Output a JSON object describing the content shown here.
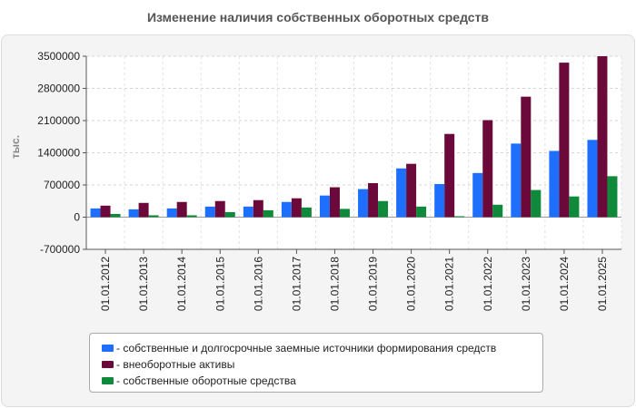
{
  "chart_data": {
    "type": "bar",
    "title": "Изменение наличия собственных оборотных средств",
    "ylabel": "тыс.",
    "xlabel": "",
    "ylim": [
      -700000,
      3500000
    ],
    "yticks": [
      3500000,
      2800000,
      2100000,
      1400000,
      700000,
      0,
      -700000
    ],
    "ytick_labels": [
      "3500000",
      "2800000",
      "2100000",
      "1400000",
      "700000",
      "0",
      "-700000"
    ],
    "categories": [
      "01.01.2012",
      "01.01.2013",
      "01.01.2014",
      "01.01.2015",
      "01.01.2016",
      "01.01.2017",
      "01.01.2018",
      "01.01.2019",
      "01.01.2020",
      "01.01.2021",
      "01.01.2022",
      "01.01.2023",
      "01.01.2024",
      "01.01.2025"
    ],
    "series": [
      {
        "name": "собственные и долгосрочные заемные источники формирования средств",
        "color": "#1f6fff",
        "values": [
          190000,
          170000,
          190000,
          230000,
          230000,
          330000,
          470000,
          610000,
          1060000,
          720000,
          960000,
          1600000,
          1440000,
          1680000
        ]
      },
      {
        "name": "внеоборотные активы",
        "color": "#6b0a3a",
        "values": [
          250000,
          310000,
          330000,
          350000,
          370000,
          410000,
          650000,
          740000,
          1160000,
          1810000,
          2110000,
          2620000,
          3360000,
          3500000
        ]
      },
      {
        "name": "собственные оборотные средства",
        "color": "#0f8a3a",
        "values": [
          70000,
          40000,
          40000,
          110000,
          150000,
          210000,
          180000,
          350000,
          230000,
          20000,
          270000,
          590000,
          450000,
          890000
        ]
      }
    ],
    "grid": true,
    "legend": "bottom-center"
  }
}
